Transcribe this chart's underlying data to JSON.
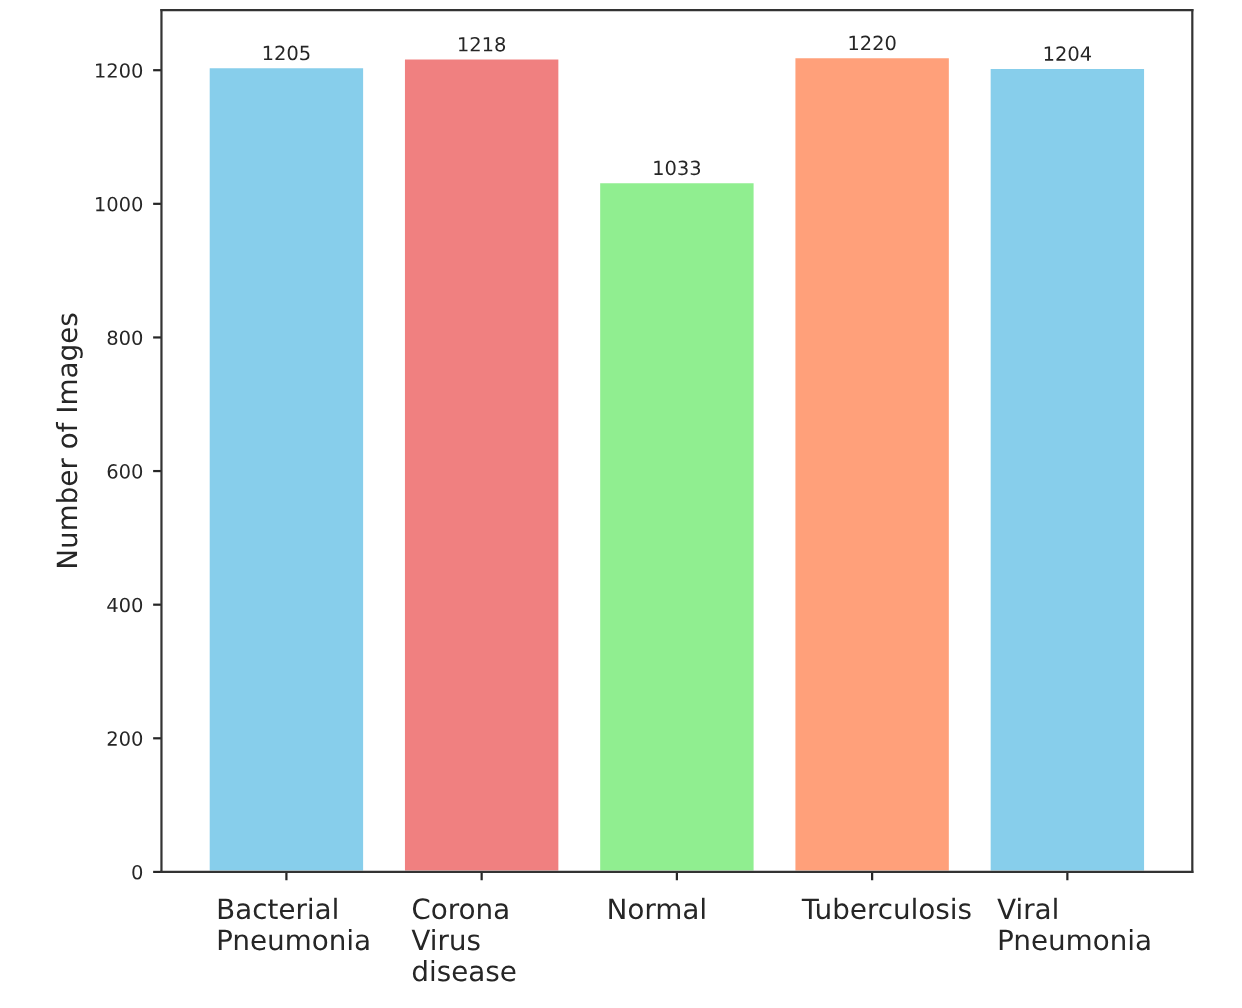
{
  "chart_data": {
    "type": "bar",
    "ylabel": "Number of Images",
    "categories": [
      "Bacterial\nPneumonia",
      "Corona\nVirus\ndisease",
      "Normal",
      "Tuberculosis",
      "Viral\nPneumonia"
    ],
    "values": [
      1205,
      1218,
      1033,
      1220,
      1204
    ],
    "colors": [
      "#87ceeb",
      "#f08080",
      "#90ee90",
      "#ffa07a",
      "#87ceeb"
    ],
    "ylim": [
      0,
      1290
    ],
    "yticks": [
      0,
      200,
      400,
      600,
      800,
      1000,
      1200
    ],
    "data_labels": true,
    "grid": false
  }
}
